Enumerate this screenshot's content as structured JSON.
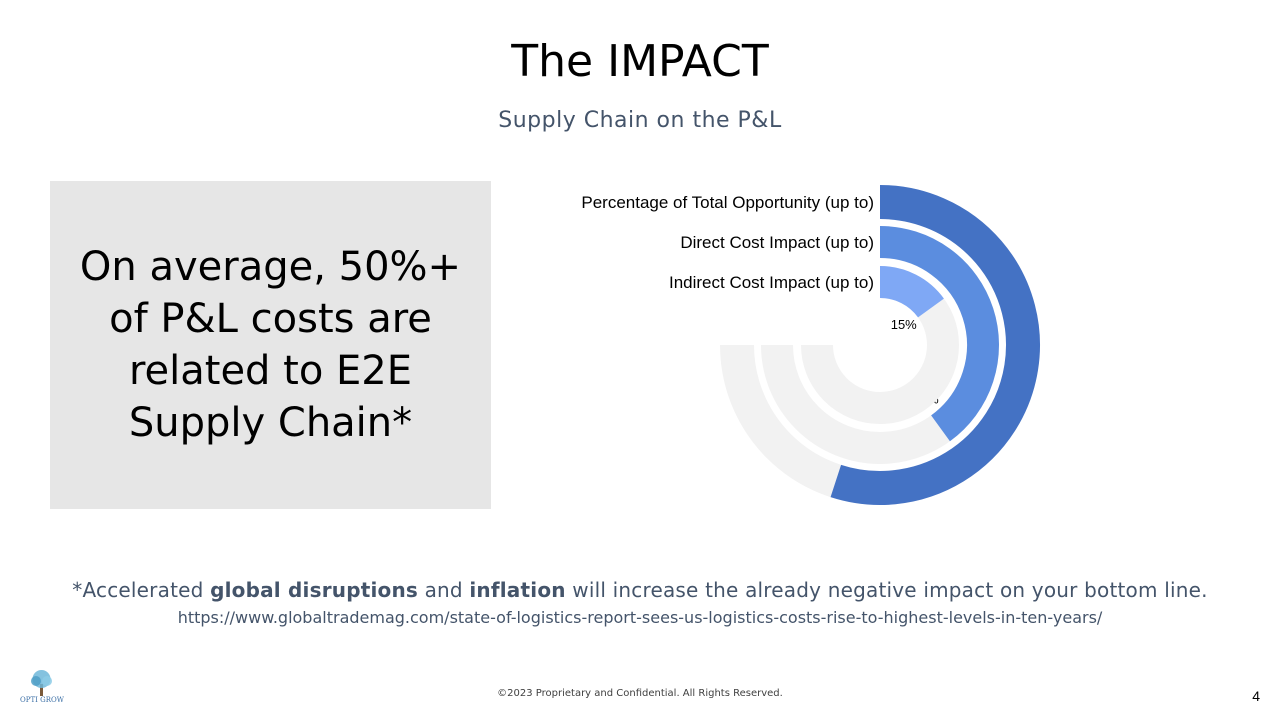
{
  "slide": {
    "title": "The IMPACT",
    "subtitle": "Supply Chain on the P&L",
    "callout": "On average, 50%+ of P&L costs are related to E2E Supply Chain*",
    "footnote": {
      "prefix": "*Accelerated ",
      "bold1": "global disruptions",
      "mid": " and ",
      "bold2": "inflation",
      "suffix": " will increase the already negative impact on your bottom line."
    },
    "source_url": "https://www.globaltrademag.com/state-of-logistics-report-sees-us-logistics-costs-rise-to-highest-levels-in-ten-years/",
    "copyright": "©2023 Proprietary and Confidential. All Rights Reserved.",
    "page_number": "4",
    "logo_text": "OPTI GROW"
  },
  "chart_data": {
    "type": "radial-bar",
    "max_value": 75,
    "series": [
      {
        "name": "Percentage of Total Opportunity (up to)",
        "value": 55,
        "label": "55%",
        "color": "#4472c4"
      },
      {
        "name": "Direct Cost Impact (up to)",
        "value": 40,
        "label": "40%",
        "color": "#5b8ddf"
      },
      {
        "name": "Indirect Cost Impact (up to)",
        "value": 15,
        "label": "15%",
        "color": "#7fa8f5"
      }
    ],
    "track_color": "#f2f2f2"
  }
}
